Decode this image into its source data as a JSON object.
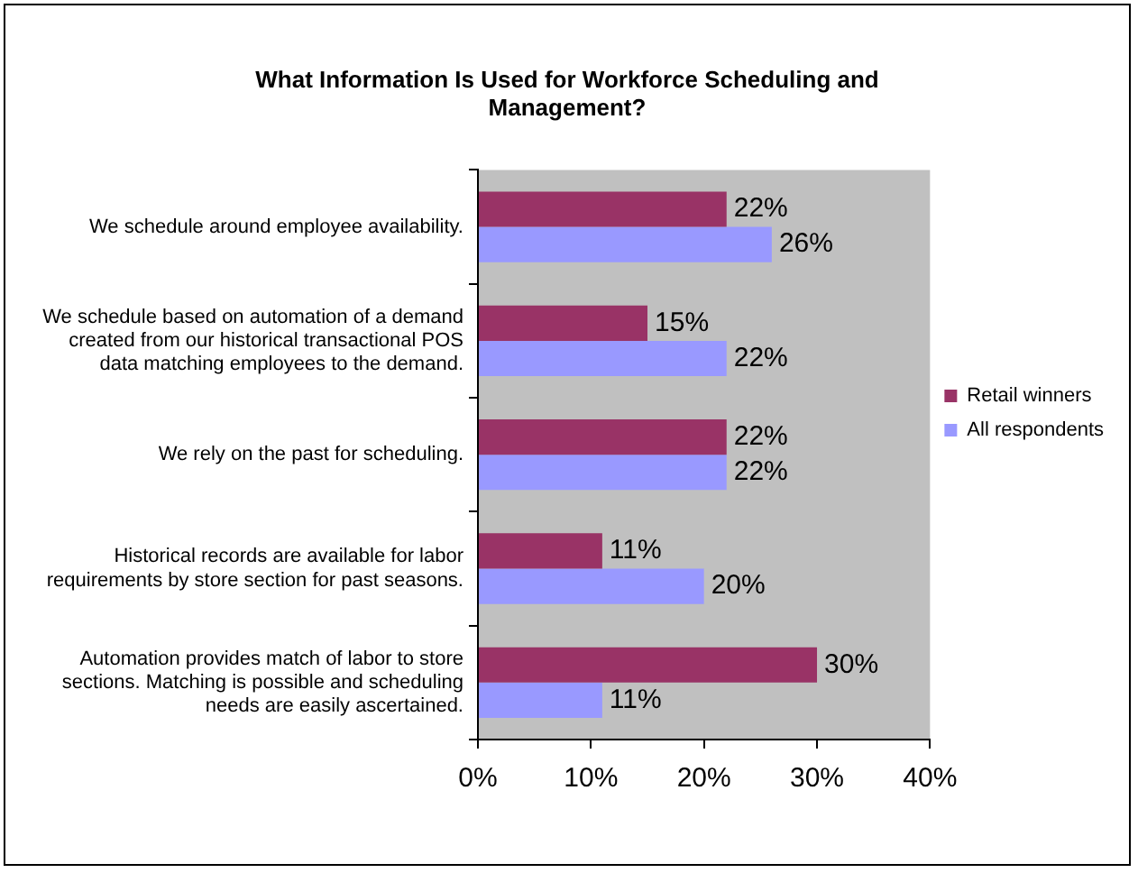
{
  "chart_data": {
    "type": "bar",
    "orientation": "horizontal",
    "title": "What Information Is Used for Workforce Scheduling and Management?",
    "categories": [
      "We schedule around employee availability.",
      "We schedule based on automation of a demand created from our historical transactional POS data matching employees to the demand.",
      "We rely on the past for scheduling.",
      "Historical records are available for labor requirements by store section for past seasons.",
      "Automation provides match of labor to store sections. Matching is possible and scheduling needs are easily ascertained."
    ],
    "series": [
      {
        "name": "Retail winners",
        "color": "#993366",
        "values": [
          22,
          15,
          22,
          11,
          30
        ],
        "value_labels": [
          "22%",
          "15%",
          "22%",
          "11%",
          "30%"
        ]
      },
      {
        "name": "All respondents",
        "color": "#9999ff",
        "values": [
          26,
          22,
          22,
          20,
          11
        ],
        "value_labels": [
          "26%",
          "22%",
          "22%",
          "20%",
          "11%"
        ]
      }
    ],
    "xlim": [
      0,
      40
    ],
    "xticks": [
      {
        "value": 0,
        "label": "0%"
      },
      {
        "value": 10,
        "label": "10%"
      },
      {
        "value": 20,
        "label": "20%"
      },
      {
        "value": 30,
        "label": "30%"
      },
      {
        "value": 40,
        "label": "40%"
      }
    ],
    "grid": false,
    "legend": "right"
  }
}
